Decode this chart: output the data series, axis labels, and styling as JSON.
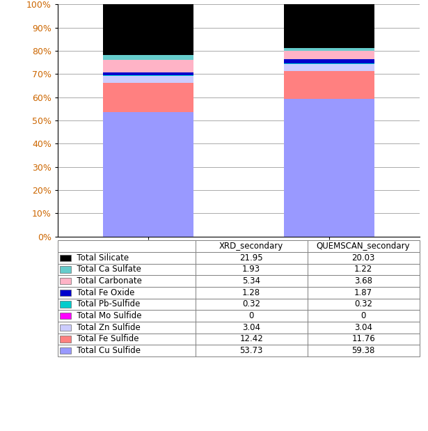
{
  "categories": [
    "XRD_secondary",
    "QUEMSCAN_secondary"
  ],
  "series": [
    {
      "label": "Total Cu Sulfide",
      "values": [
        53.73,
        59.38
      ],
      "color": "#9999FF"
    },
    {
      "label": "Total Fe Sulfide",
      "values": [
        12.42,
        11.76
      ],
      "color": "#FF8080"
    },
    {
      "label": "Total Zn Sulfide",
      "values": [
        3.04,
        3.04
      ],
      "color": "#CCCCFF"
    },
    {
      "label": "Total Mo Sulfide",
      "values": [
        0.0,
        0.0
      ],
      "color": "#FF00FF"
    },
    {
      "label": "Total Pb-Sulfide",
      "values": [
        0.32,
        0.32
      ],
      "color": "#00CCCC"
    },
    {
      "label": "Total Fe Oxide",
      "values": [
        1.28,
        1.87
      ],
      "color": "#0000CC"
    },
    {
      "label": "Total Carbonate",
      "values": [
        5.34,
        3.68
      ],
      "color": "#FFB3C6"
    },
    {
      "label": "Total Ca Sulfate",
      "values": [
        1.93,
        1.22
      ],
      "color": "#66CCCC"
    },
    {
      "label": "Total Silicate",
      "values": [
        21.95,
        20.03
      ],
      "color": "#000000"
    }
  ],
  "table_rows": [
    {
      "label": "Total Silicate",
      "xrd": "21.95",
      "qscan": "20.03",
      "color": "#000000"
    },
    {
      "label": "Total Ca Sulfate",
      "xrd": "1.93",
      "qscan": "1.22",
      "color": "#66CCCC"
    },
    {
      "label": "Total Carbonate",
      "xrd": "5.34",
      "qscan": "3.68",
      "color": "#FFB3C6"
    },
    {
      "label": "Total Fe Oxide",
      "xrd": "1.28",
      "qscan": "1.87",
      "color": "#0000CC"
    },
    {
      "label": "Total Pb-Sulfide",
      "xrd": "0.32",
      "qscan": "0.32",
      "color": "#00CCCC"
    },
    {
      "label": "Total Mo Sulfide",
      "xrd": "0",
      "qscan": "0",
      "color": "#FF00FF"
    },
    {
      "label": "Total Zn Sulfide",
      "xrd": "3.04",
      "qscan": "3.04",
      "color": "#CCCCFF"
    },
    {
      "label": "Total Fe Sulfide",
      "xrd": "12.42",
      "qscan": "11.76",
      "color": "#FF8080"
    },
    {
      "label": "Total Cu Sulfide",
      "xrd": "53.73",
      "qscan": "59.38",
      "color": "#9999FF"
    }
  ],
  "col_headers": [
    "XRD_secondary",
    "QUEMSCAN_secondary"
  ],
  "ylim": [
    0,
    100
  ],
  "yticks": [
    0,
    10,
    20,
    30,
    40,
    50,
    60,
    70,
    80,
    90,
    100
  ],
  "ytick_labels": [
    "0%",
    "10%",
    "20%",
    "30%",
    "40%",
    "50%",
    "60%",
    "70%",
    "80%",
    "90%",
    "100%"
  ],
  "bar_width": 0.5,
  "background_color": "#FFFFFF",
  "grid_color": "#AAAAAA",
  "tick_color": "#CC6600",
  "font_color": "#000000",
  "table_font_color": "#000000",
  "font_size": 9,
  "table_font_size": 8.5
}
